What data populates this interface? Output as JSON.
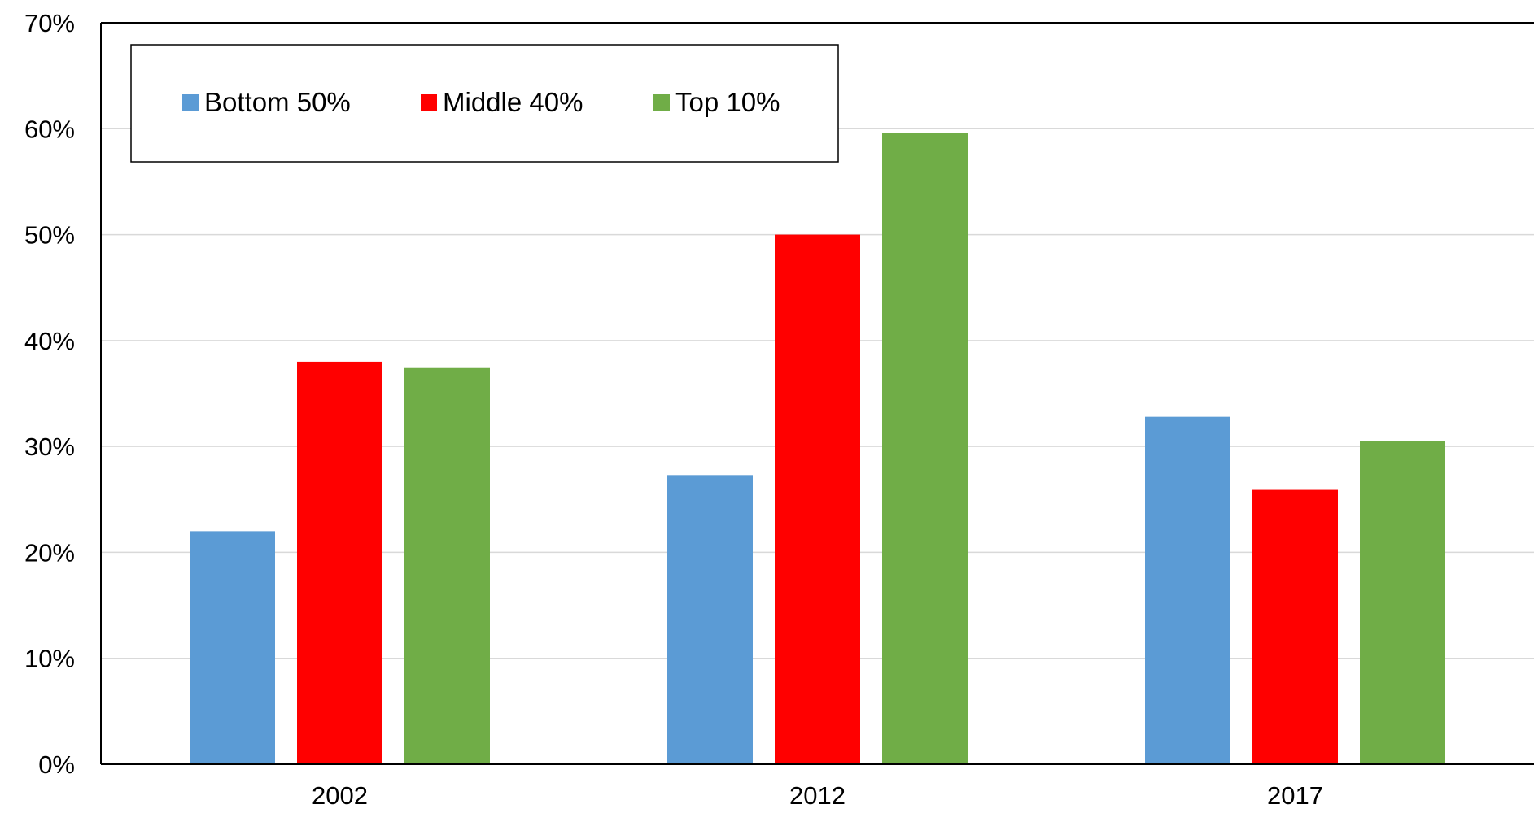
{
  "chart_data": {
    "type": "bar",
    "title": "",
    "xlabel": "",
    "ylabel": "",
    "categories": [
      "2002",
      "2012",
      "2017"
    ],
    "series": [
      {
        "name": "Bottom 50%",
        "color": "#5B9BD5",
        "values": [
          22,
          27.3,
          32.8
        ]
      },
      {
        "name": "Middle 40%",
        "color": "#FF0000",
        "values": [
          38,
          50,
          25.9
        ]
      },
      {
        "name": "Top 10%",
        "color": "#70AD47",
        "values": [
          37.4,
          59.6,
          30.5
        ]
      }
    ],
    "ylim": [
      0,
      70
    ],
    "yticks": [
      0,
      10,
      20,
      30,
      40,
      50,
      60,
      70
    ],
    "ytick_format": "percent",
    "grid": true,
    "legend_position": "top-left"
  }
}
